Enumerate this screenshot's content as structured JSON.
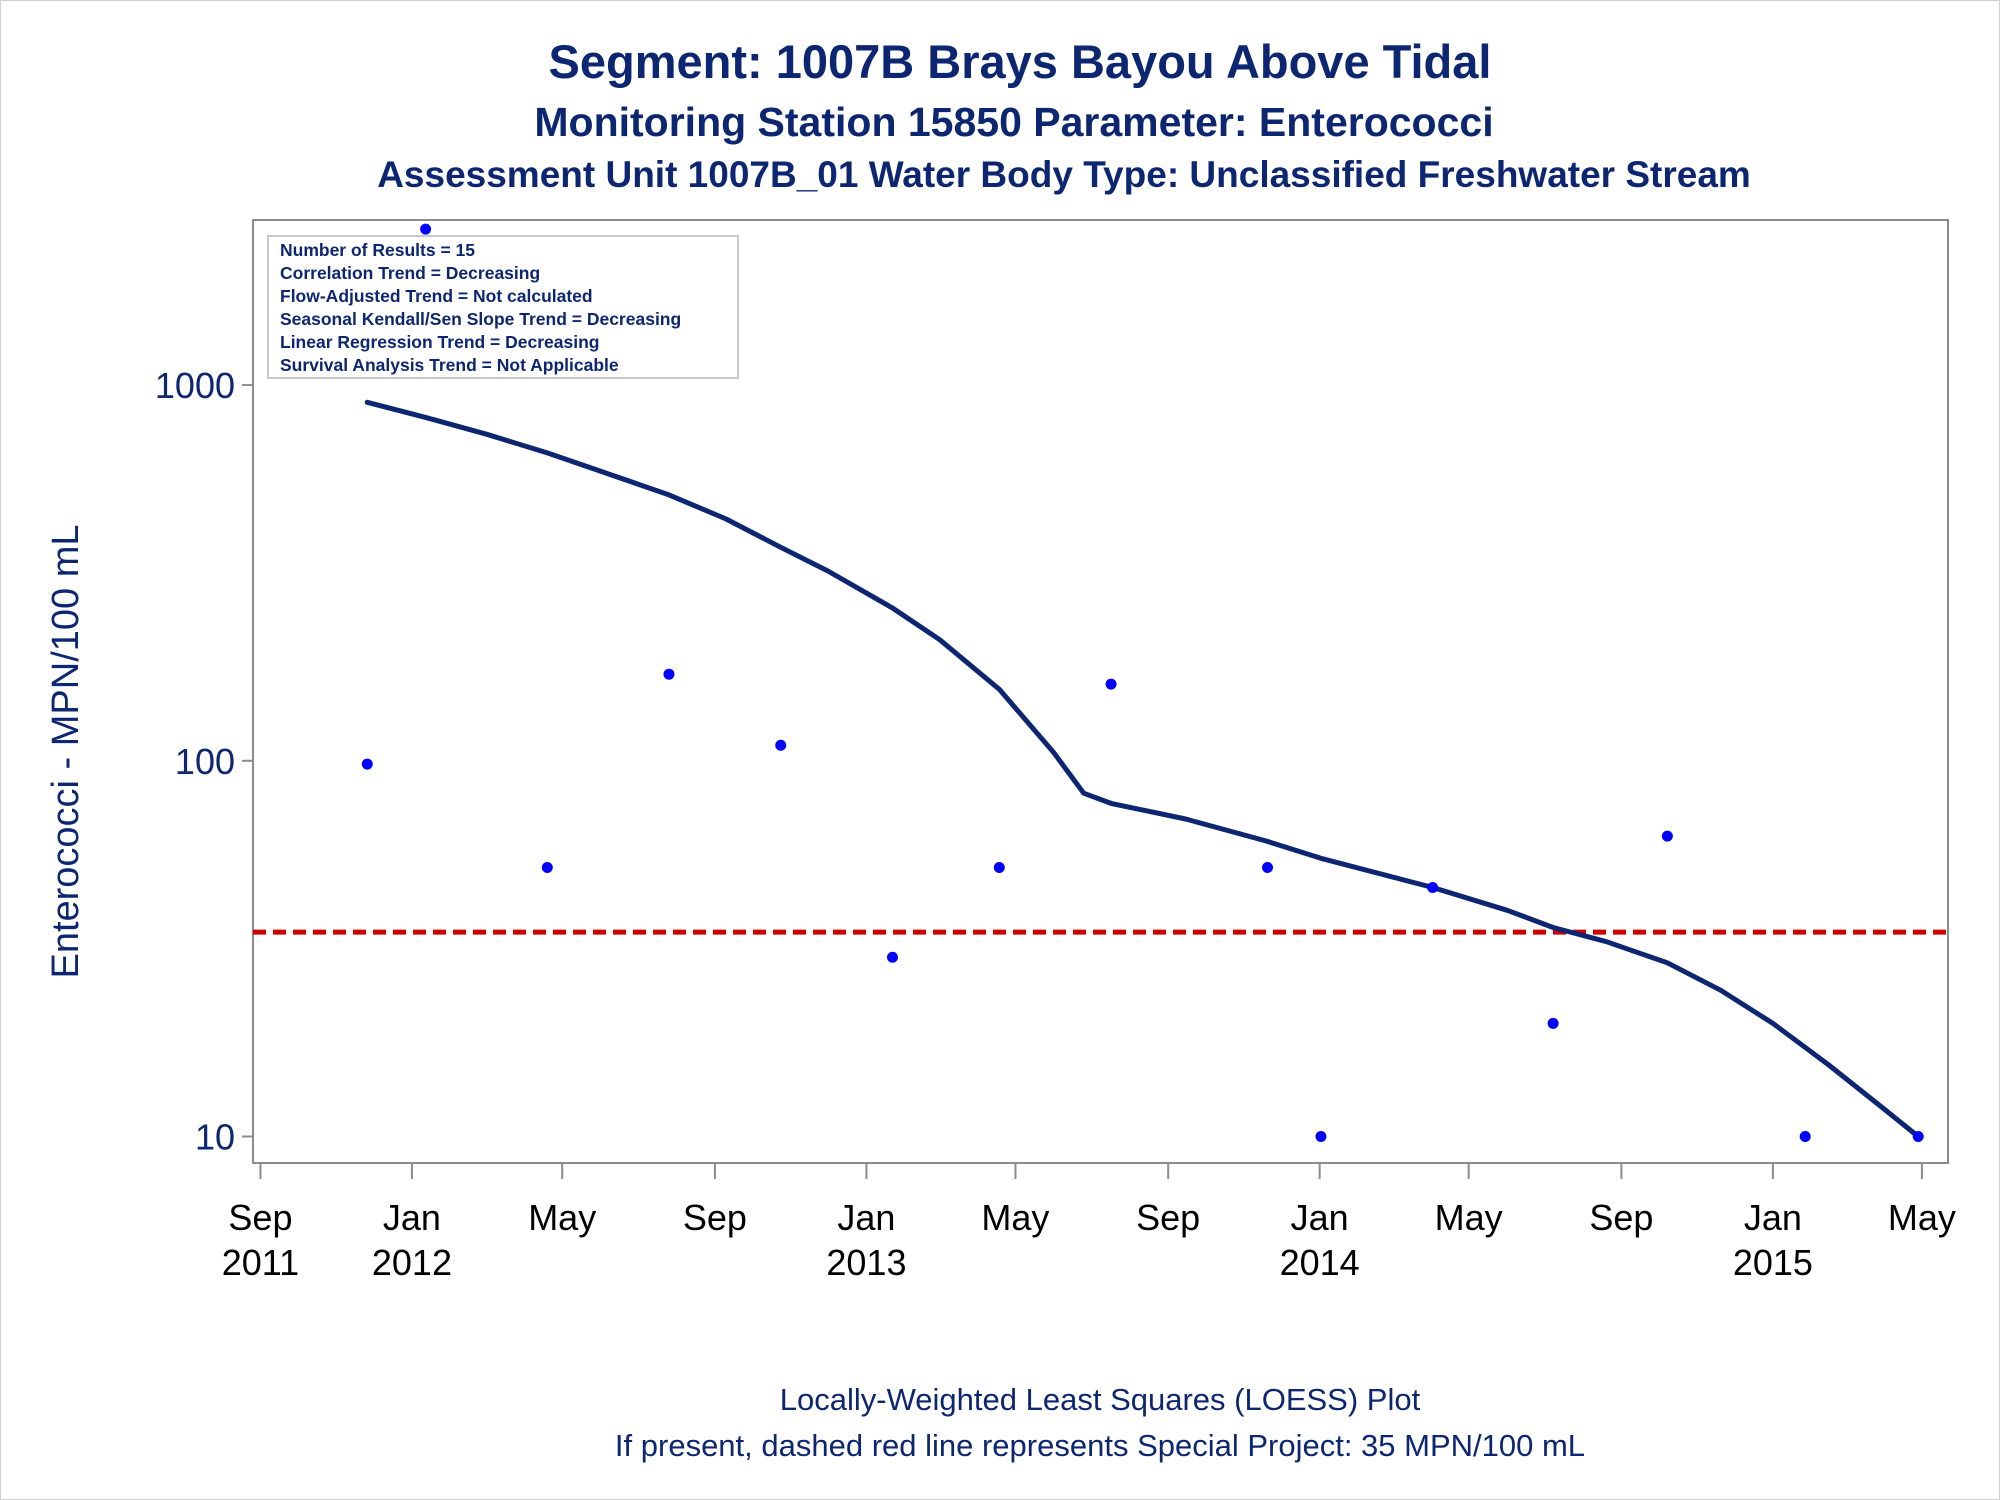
{
  "titles": {
    "line1": "Segment: 1007B  Brays Bayou Above Tidal",
    "line2": "Monitoring Station 15850 Parameter: Enterococci",
    "line3": "Assessment Unit 1007B_01   Water Body Type: Unclassified Freshwater Stream"
  },
  "footnotes": {
    "line1": "Locally-Weighted Least Squares (LOESS) Plot",
    "line2": "If present, dashed red line represents Special Project: 35 MPN/100 mL"
  },
  "colors": {
    "text": "#0d2672",
    "points": "#0000ff",
    "loess": "#0d2672",
    "reference": "#cc0000",
    "axis": "#8c8c8c"
  },
  "chart_data": {
    "type": "scatter",
    "ylabel": "Enterococci - MPN/100 mL",
    "xlabel": "",
    "y_scale": "log",
    "ylim": [
      8.5,
      2750
    ],
    "xlim": [
      "2011-08-26",
      "2015-05-22"
    ],
    "yticks": [
      {
        "value": 10,
        "label": "10"
      },
      {
        "value": 100,
        "label": "100"
      },
      {
        "value": 1000,
        "label": "1000"
      }
    ],
    "xticks": [
      {
        "date": "2011-09-01",
        "label": "Sep",
        "year": "2011"
      },
      {
        "date": "2012-01-01",
        "label": "Jan",
        "year": "2012"
      },
      {
        "date": "2012-05-01",
        "label": "May",
        "year": ""
      },
      {
        "date": "2012-09-01",
        "label": "Sep",
        "year": ""
      },
      {
        "date": "2013-01-01",
        "label": "Jan",
        "year": "2013"
      },
      {
        "date": "2013-05-01",
        "label": "May",
        "year": ""
      },
      {
        "date": "2013-09-01",
        "label": "Sep",
        "year": ""
      },
      {
        "date": "2014-01-01",
        "label": "Jan",
        "year": "2014"
      },
      {
        "date": "2014-05-01",
        "label": "May",
        "year": ""
      },
      {
        "date": "2014-09-01",
        "label": "Sep",
        "year": ""
      },
      {
        "date": "2015-01-01",
        "label": "Jan",
        "year": "2015"
      },
      {
        "date": "2015-05-01",
        "label": "May",
        "year": ""
      }
    ],
    "points": [
      {
        "x": "2011-11-26",
        "y": 98
      },
      {
        "x": "2012-01-12",
        "y": 2600
      },
      {
        "x": "2012-04-19",
        "y": 52
      },
      {
        "x": "2012-07-26",
        "y": 170
      },
      {
        "x": "2012-10-24",
        "y": 110
      },
      {
        "x": "2013-01-22",
        "y": 30
      },
      {
        "x": "2013-04-18",
        "y": 52
      },
      {
        "x": "2013-07-17",
        "y": 160
      },
      {
        "x": "2013-11-20",
        "y": 52
      },
      {
        "x": "2014-01-02",
        "y": 10
      },
      {
        "x": "2014-04-02",
        "y": 46
      },
      {
        "x": "2014-07-08",
        "y": 20
      },
      {
        "x": "2014-10-08",
        "y": 63
      },
      {
        "x": "2015-01-27",
        "y": 10
      },
      {
        "x": "2015-04-28",
        "y": 10
      }
    ],
    "loess": [
      {
        "x": "2011-11-26",
        "y": 900
      },
      {
        "x": "2012-01-12",
        "y": 820
      },
      {
        "x": "2012-03-01",
        "y": 740
      },
      {
        "x": "2012-04-19",
        "y": 660
      },
      {
        "x": "2012-06-01",
        "y": 590
      },
      {
        "x": "2012-07-26",
        "y": 510
      },
      {
        "x": "2012-09-10",
        "y": 440
      },
      {
        "x": "2012-10-24",
        "y": 370
      },
      {
        "x": "2012-12-01",
        "y": 320
      },
      {
        "x": "2013-01-22",
        "y": 255
      },
      {
        "x": "2013-03-01",
        "y": 210
      },
      {
        "x": "2013-04-18",
        "y": 155
      },
      {
        "x": "2013-06-01",
        "y": 105
      },
      {
        "x": "2013-06-25",
        "y": 82
      },
      {
        "x": "2013-07-17",
        "y": 77
      },
      {
        "x": "2013-09-15",
        "y": 70
      },
      {
        "x": "2013-11-20",
        "y": 61
      },
      {
        "x": "2014-01-02",
        "y": 55
      },
      {
        "x": "2014-04-02",
        "y": 46
      },
      {
        "x": "2014-06-01",
        "y": 40
      },
      {
        "x": "2014-07-08",
        "y": 36
      },
      {
        "x": "2014-08-20",
        "y": 33
      },
      {
        "x": "2014-10-08",
        "y": 29
      },
      {
        "x": "2014-11-20",
        "y": 24.5
      },
      {
        "x": "2015-01-01",
        "y": 20
      },
      {
        "x": "2015-02-15",
        "y": 15.5
      },
      {
        "x": "2015-04-01",
        "y": 11.8
      },
      {
        "x": "2015-04-28",
        "y": 10
      }
    ],
    "reference_line": {
      "y": 35,
      "style": "dashed"
    },
    "stats_box": {
      "placement": "top-left",
      "lines": [
        "Number of Results = 15",
        "Correlation Trend = Decreasing",
        "Flow-Adjusted Trend = Not calculated",
        "Seasonal Kendall/Sen Slope Trend = Decreasing",
        "Linear Regression Trend = Decreasing",
        "Survival Analysis Trend = Not Applicable"
      ]
    },
    "grid": false
  }
}
